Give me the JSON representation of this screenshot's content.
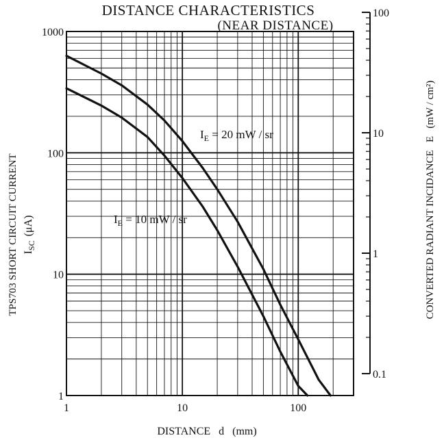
{
  "chart_data": {
    "type": "line",
    "title": "DISTANCE CHARACTERISTICS",
    "subtitle": "(NEAR DISTANCE)",
    "xlabel": "DISTANCE   d   (mm)",
    "ylabel_line1": "TPS703 SHORT CIRCUIT CURRENT",
    "ylabel_line2_main": "I",
    "ylabel_line2_sub": "SC",
    "ylabel_line2_unit": "(μA)",
    "y2label": "CONVERTED RADIANT INCIDANCE   E   (mW / cm²)",
    "x_scale": "log",
    "y_scale": "log",
    "y2_scale": "log",
    "xlim": [
      1,
      300
    ],
    "ylim": [
      1,
      1000
    ],
    "y2lim": [
      0.1,
      100
    ],
    "x_ticks": [
      {
        "v": 1,
        "label": "1"
      },
      {
        "v": 10,
        "label": "10"
      },
      {
        "v": 100,
        "label": "100"
      }
    ],
    "y_ticks": [
      {
        "v": 1,
        "label": "1"
      },
      {
        "v": 10,
        "label": "10"
      },
      {
        "v": 100,
        "label": "100"
      },
      {
        "v": 1000,
        "label": "1000"
      }
    ],
    "y2_ticks": [
      {
        "v": 0.1,
        "label": "0.1"
      },
      {
        "v": 1,
        "label": "1"
      },
      {
        "v": 10,
        "label": "10"
      },
      {
        "v": 100,
        "label": "100"
      }
    ],
    "grid": true,
    "series": [
      {
        "name": "I_E = 20 mW/sr",
        "label_main": "I",
        "label_sub": "E",
        "label_rest": " = 20 mW / sr",
        "x": [
          1,
          2,
          3,
          5,
          7,
          10,
          15,
          20,
          30,
          50,
          70,
          100,
          150,
          190
        ],
        "y": [
          630,
          450,
          360,
          250,
          185,
          125,
          75,
          50,
          27,
          11,
          5.6,
          2.9,
          1.35,
          1
        ]
      },
      {
        "name": "I_E = 10 mW/sr",
        "label_main": "I",
        "label_sub": "E",
        "label_rest": " = 10 mW / sr",
        "x": [
          1,
          2,
          3,
          5,
          7,
          10,
          15,
          20,
          30,
          50,
          70,
          100,
          120
        ],
        "y": [
          340,
          245,
          195,
          135,
          95,
          62,
          36,
          23,
          11.5,
          4.5,
          2.3,
          1.2,
          1
        ]
      }
    ]
  }
}
